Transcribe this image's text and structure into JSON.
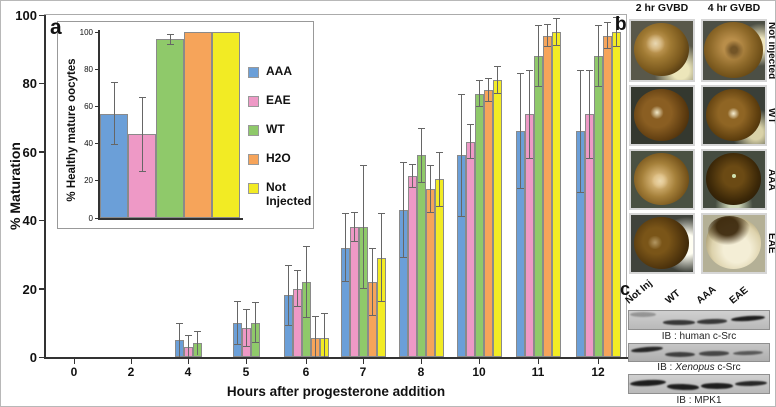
{
  "figure": {
    "panel_a_label": "a",
    "panel_b_label": "b",
    "panel_c_label": "c"
  },
  "chart_data": {
    "main": {
      "type": "bar",
      "title": "",
      "xlabel": "Hours after progesterone addition",
      "ylabel": "% Maturation",
      "ylim": [
        0,
        100
      ],
      "yticks": [
        0,
        20,
        40,
        60,
        80,
        100
      ],
      "grid": false,
      "error_bars": true,
      "legend_position": "inside-inset-right",
      "categories": [
        "0",
        "2",
        "4",
        "5",
        "6",
        "7",
        "8",
        "10",
        "11",
        "12"
      ],
      "series": [
        {
          "name": "AAA",
          "color": "#6B9FD8",
          "values": [
            0,
            0,
            5,
            10,
            18,
            32,
            43,
            59,
            66,
            66
          ],
          "errors": [
            0,
            0,
            5,
            6.5,
            9,
            10,
            14,
            18,
            17,
            18
          ]
        },
        {
          "name": "EAE",
          "color": "#EE99C6",
          "values": [
            0,
            0,
            3,
            8.5,
            20,
            38,
            53,
            63,
            71,
            71
          ],
          "errors": [
            0,
            0,
            3.5,
            5.5,
            5.5,
            4.5,
            3.5,
            5,
            13,
            13
          ]
        },
        {
          "name": "WT",
          "color": "#8FC96A",
          "values": [
            0,
            0,
            4,
            10,
            22,
            38,
            59,
            77,
            88,
            88
          ],
          "errors": [
            0,
            0,
            3.5,
            6,
            10.5,
            18,
            8,
            4,
            9,
            9
          ]
        },
        {
          "name": "H2O",
          "color": "#F6A45A",
          "values": [
            null,
            null,
            null,
            null,
            5.5,
            22,
            49,
            78,
            94,
            94
          ],
          "errors": [
            null,
            null,
            null,
            null,
            6.5,
            10,
            7,
            3.5,
            3.5,
            4
          ]
        },
        {
          "name": "Not Injected",
          "color": "#F2EB24",
          "values": [
            null,
            null,
            null,
            null,
            5.5,
            29,
            52,
            81,
            95,
            95
          ],
          "errors": [
            null,
            null,
            null,
            null,
            7.5,
            13,
            8,
            4,
            4,
            4.5
          ]
        }
      ]
    },
    "inset": {
      "type": "bar",
      "ylabel": "% Healthy mature oocytes",
      "ylim": [
        0,
        100
      ],
      "yticks": [
        0,
        20,
        40,
        60,
        80,
        100
      ],
      "grid": false,
      "error_bars": true,
      "categories": [
        "AAA",
        "EAE",
        "WT",
        "H2O",
        "Not Injected"
      ],
      "values": [
        56,
        45,
        96,
        100,
        100
      ],
      "errors": [
        17,
        20,
        3,
        0,
        0
      ]
    }
  },
  "panel_b": {
    "col_headers": [
      "2 hr GVBD",
      "4 hr GVBD"
    ],
    "rows": [
      {
        "label": "Not injected"
      },
      {
        "label": "WT"
      },
      {
        "label": "AAA"
      },
      {
        "label": "EAE"
      }
    ]
  },
  "panel_c": {
    "lanes": [
      "Not Inj",
      "WT",
      "AAA",
      "EAE"
    ],
    "blots": [
      {
        "caption": "IB : human c-Src"
      },
      {
        "caption_prefix": "IB : ",
        "caption_italic": "Xenopus",
        "caption_suffix": " c-Src"
      },
      {
        "caption": "IB : MPK1"
      }
    ]
  }
}
